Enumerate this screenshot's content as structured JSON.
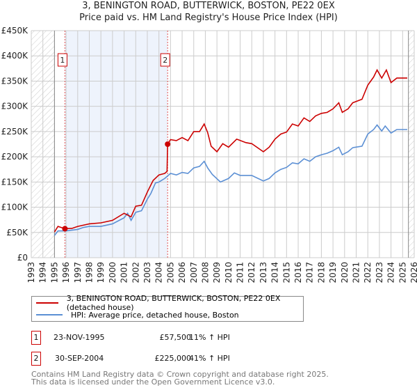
{
  "chart_data": {
    "type": "line",
    "title": "3, BENINGTON ROAD, BUTTERWICK, BOSTON, PE22 0EX",
    "subtitle": "Price paid vs. HM Land Registry's House Price Index (HPI)",
    "xlim": [
      1993,
      2026
    ],
    "ylim": [
      0,
      450000
    ],
    "yticks": [
      0,
      50000,
      100000,
      150000,
      200000,
      250000,
      300000,
      350000,
      400000,
      450000
    ],
    "ytick_labels": [
      "£0",
      "£50K",
      "£100K",
      "£150K",
      "£200K",
      "£250K",
      "£300K",
      "£350K",
      "£400K",
      "£450K"
    ],
    "xticks": [
      1993,
      1994,
      1995,
      1996,
      1997,
      1998,
      1999,
      2000,
      2001,
      2002,
      2003,
      2004,
      2005,
      2006,
      2007,
      2008,
      2009,
      2010,
      2011,
      2012,
      2013,
      2014,
      2015,
      2016,
      2017,
      2018,
      2019,
      2020,
      2021,
      2022,
      2023,
      2024,
      2025,
      2026
    ],
    "grid": true,
    "series": [
      {
        "name": "3, BENINGTON ROAD, BUTTERWICK, BOSTON, PE22 0EX (detached house)",
        "color": "#cc0000",
        "x": [
          1995.0,
          1995.3,
          1995.9,
          1996.5,
          1997,
          1998,
          1999,
          2000,
          2001,
          2001.6,
          2002,
          2002.5,
          2003,
          2003.5,
          2004,
          2004.5,
          2004.7,
          2004.75,
          2005,
          2005.5,
          2006,
          2006.5,
          2007,
          2007.5,
          2007.9,
          2008.2,
          2008.5,
          2009,
          2009.5,
          2010,
          2010.7,
          2011.5,
          2012,
          2013,
          2013.5,
          2014,
          2014.5,
          2015,
          2015.5,
          2016,
          2016.5,
          2017,
          2017.5,
          2018,
          2018.5,
          2019,
          2019.5,
          2019.8,
          2020.3,
          2020.7,
          2021.5,
          2022,
          2022.5,
          2022.8,
          2023.2,
          2023.6,
          2024,
          2024.5,
          2025.4
        ],
        "y": [
          51000,
          62000,
          57500,
          58000,
          62000,
          67000,
          69000,
          74000,
          88000,
          81000,
          102000,
          104000,
          130000,
          153000,
          164000,
          167000,
          171000,
          225000,
          234000,
          232000,
          238000,
          232000,
          250000,
          250000,
          265000,
          248000,
          221000,
          210000,
          226000,
          219000,
          235000,
          228000,
          226000,
          210000,
          219000,
          235000,
          245000,
          249000,
          265000,
          261000,
          277000,
          270000,
          281000,
          286000,
          288000,
          295000,
          307000,
          288000,
          295000,
          307000,
          314000,
          342000,
          358000,
          372000,
          356000,
          372000,
          347000,
          356000,
          356000
        ]
      },
      {
        "name": "HPI: Average price, detached house, Boston",
        "color": "#5b8fd4",
        "x": [
          1995.0,
          1995.3,
          1996,
          1997,
          1997.5,
          1998,
          1999,
          2000,
          2001,
          2001.3,
          2001.6,
          2002,
          2002.5,
          2003,
          2003.3,
          2003.7,
          2004,
          2004.5,
          2004.75,
          2005,
          2005.5,
          2006,
          2006.5,
          2007,
          2007.5,
          2007.9,
          2008.2,
          2008.6,
          2009.3,
          2010,
          2010.5,
          2011,
          2012,
          2013,
          2013.5,
          2014,
          2014.5,
          2015,
          2015.5,
          2016,
          2016.5,
          2017,
          2017.5,
          2018,
          2018.5,
          2019,
          2019.5,
          2019.8,
          2020.3,
          2020.7,
          2021.5,
          2022,
          2022.5,
          2022.8,
          2023.2,
          2023.5,
          2024,
          2024.5,
          2025.4
        ],
        "y": [
          44000,
          53000,
          53000,
          56000,
          60000,
          62000,
          62000,
          67000,
          79000,
          88000,
          74000,
          90000,
          93000,
          116000,
          127000,
          148000,
          150000,
          157000,
          162000,
          167000,
          164000,
          169000,
          167000,
          178000,
          181000,
          191000,
          178000,
          165000,
          150000,
          157000,
          168000,
          163000,
          163000,
          152000,
          157000,
          168000,
          175000,
          179000,
          188000,
          186000,
          196000,
          191000,
          200000,
          204000,
          207000,
          212000,
          219000,
          204000,
          210000,
          218000,
          221000,
          245000,
          254000,
          263000,
          251000,
          261000,
          247000,
          254000,
          254000
        ]
      }
    ],
    "sales": [
      {
        "label": "1",
        "x": 1995.9,
        "date": "23-NOV-1995",
        "price": 57500,
        "price_text": "£57,500",
        "hpi": "11% ↑ HPI"
      },
      {
        "label": "2",
        "x": 2004.75,
        "date": "30-SEP-2004",
        "price": 225000,
        "price_text": "£225,000",
        "hpi": "41% ↑ HPI"
      }
    ],
    "legend_placement": "bottom"
  },
  "footer": {
    "line1": "Contains HM Land Registry data © Crown copyright and database right 2025.",
    "line2": "This data is licensed under the Open Government Licence v3.0."
  }
}
